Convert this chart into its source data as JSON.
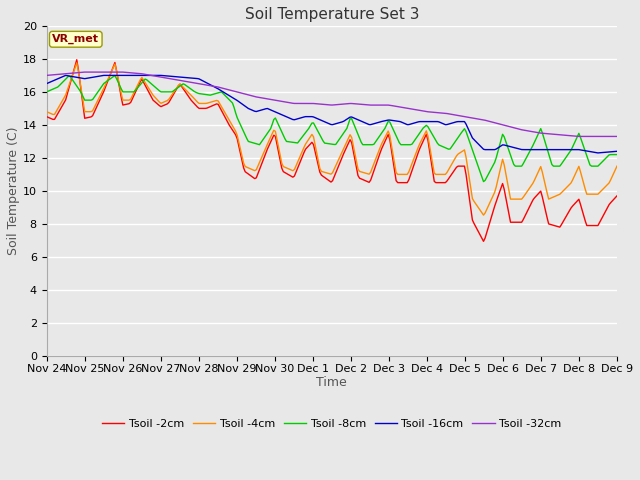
{
  "title": "Soil Temperature Set 3",
  "xlabel": "Time",
  "ylabel": "Soil Temperature (C)",
  "ylim": [
    0,
    20
  ],
  "yticks": [
    0,
    2,
    4,
    6,
    8,
    10,
    12,
    14,
    16,
    18,
    20
  ],
  "x_labels": [
    "Nov 24",
    "Nov 25",
    "Nov 26",
    "Nov 27",
    "Nov 28",
    "Nov 29",
    "Nov 30",
    "Dec 1",
    "Dec 2",
    "Dec 3",
    "Dec 4",
    "Dec 5",
    "Dec 6",
    "Dec 7",
    "Dec 8",
    "Dec 9"
  ],
  "annotation_text": "VR_met",
  "annotation_color": "#8B0000",
  "annotation_bg": "#FFFFCC",
  "background_color": "#E8E8E8",
  "plot_bg_color": "#E8E8E8",
  "grid_color": "#FFFFFF",
  "series": [
    {
      "label": "Tsoil -2cm",
      "color": "#FF0000"
    },
    {
      "label": "Tsoil -4cm",
      "color": "#FF8C00"
    },
    {
      "label": "Tsoil -8cm",
      "color": "#00CC00"
    },
    {
      "label": "Tsoil -16cm",
      "color": "#0000CC"
    },
    {
      "label": "Tsoil -32cm",
      "color": "#9932CC"
    }
  ],
  "title_fontsize": 11,
  "axis_label_fontsize": 9,
  "tick_fontsize": 8,
  "legend_fontsize": 8,
  "figsize": [
    6.4,
    4.8
  ],
  "dpi": 100
}
